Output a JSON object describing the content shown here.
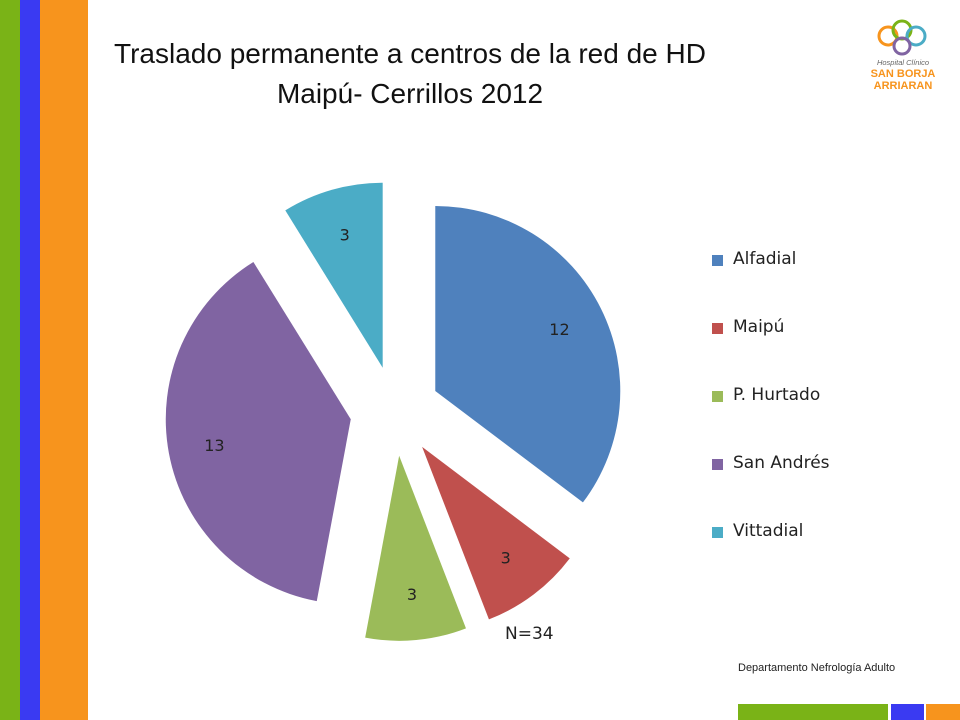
{
  "slide": {
    "title_line1": "Traslado permanente a centros de la red de HD",
    "title_line2": "Maipú- Cerrillos 2012",
    "note": "N=34",
    "footer": "Departamento Nefrología Adulto",
    "logo": {
      "line1": "Hospital Clínico",
      "line2": "SAN BORJA",
      "line3": "ARRIARAN"
    },
    "stripe_colors": [
      "#7AB317",
      "#3A3AF2",
      "#F7941D"
    ]
  },
  "chart_data": {
    "type": "pie",
    "title": "",
    "exploded": true,
    "data_labels": true,
    "legend_position": "right",
    "categories": [
      "Alfadial",
      "Maipú",
      "P. Hurtado",
      "San Andrés",
      "Vittadial"
    ],
    "values": [
      12,
      3,
      3,
      13,
      3
    ],
    "colors": [
      "#4F81BD",
      "#C0504D",
      "#9BBB59",
      "#8064A2",
      "#4BACC6"
    ]
  }
}
